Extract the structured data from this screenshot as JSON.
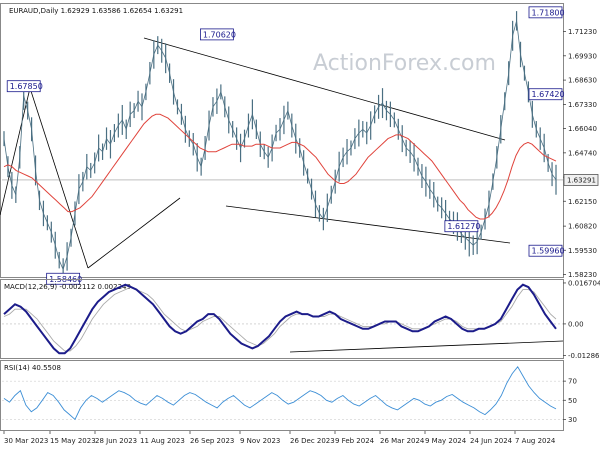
{
  "chart_data": [
    {
      "type": "line",
      "title": "EURAUD,Daily  1.62929 1.63586 1.62654 1.63291",
      "watermark": "ActionForex.com",
      "ylim": [
        1.581,
        1.727
      ],
      "yticks": [
        "1.71230",
        "1.69930",
        "1.68630",
        "1.67330",
        "1.66040",
        "1.64740",
        "1.63440",
        "1.62150",
        "1.60820",
        "1.59530",
        "1.58230"
      ],
      "ytick_values": [
        1.7123,
        1.6993,
        1.6863,
        1.6733,
        1.6604,
        1.6474,
        1.6344,
        1.6215,
        1.6082,
        1.5953,
        1.5823
      ],
      "last_price_label": "1.63291",
      "last_price": 1.63291,
      "annotations": [
        {
          "text": "1.58460",
          "index": 15,
          "value": 1.5846
        },
        {
          "text": "1.70620",
          "index": 54,
          "value": 1.7062
        },
        {
          "text": "1.61270",
          "index": 116,
          "value": 1.6127
        },
        {
          "text": "1.67420",
          "index": 142,
          "value": 1.6742
        },
        {
          "text": "1.59960",
          "index": 200,
          "value": 1.5996
        },
        {
          "text": "1.71800",
          "index": 213,
          "value": 1.718
        },
        {
          "text": "1.67850",
          "index": 5,
          "value": 1.6785
        }
      ],
      "series": [
        {
          "values": [
            1.655,
            1.64,
            1.63,
            1.625,
            1.645,
            1.678,
            1.67,
            1.66,
            1.638,
            1.622,
            1.615,
            1.61,
            1.605,
            1.598,
            1.59,
            1.585,
            1.592,
            1.602,
            1.615,
            1.628,
            1.632,
            1.64,
            1.638,
            1.642,
            1.65,
            1.648,
            1.655,
            1.652,
            1.658,
            1.662,
            1.665,
            1.66,
            1.668,
            1.67,
            1.675,
            1.672,
            1.68,
            1.69,
            1.7,
            1.705,
            1.702,
            1.698,
            1.69,
            1.68,
            1.672,
            1.668,
            1.66,
            1.655,
            1.652,
            1.645,
            1.64,
            1.65,
            1.662,
            1.672,
            1.675,
            1.68,
            1.672,
            1.665,
            1.66,
            1.655,
            1.65,
            1.655,
            1.662,
            1.668,
            1.66,
            1.652,
            1.648,
            1.645,
            1.65,
            1.658,
            1.66,
            1.665,
            1.67,
            1.662,
            1.655,
            1.65,
            1.642,
            1.635,
            1.628,
            1.62,
            1.615,
            1.612,
            1.618,
            1.625,
            1.632,
            1.64,
            1.645,
            1.648,
            1.65,
            1.655,
            1.658,
            1.66,
            1.658,
            1.662,
            1.668,
            1.672,
            1.674,
            1.67,
            1.668,
            1.665,
            1.66,
            1.655,
            1.65,
            1.648,
            1.645,
            1.64,
            1.635,
            1.632,
            1.628,
            1.625,
            1.62,
            1.618,
            1.615,
            1.612,
            1.61,
            1.608,
            1.604,
            1.602,
            1.6,
            1.598,
            1.6,
            1.605,
            1.612,
            1.62,
            1.632,
            1.645,
            1.66,
            1.675,
            1.69,
            1.71,
            1.718,
            1.7,
            1.69,
            1.68,
            1.668,
            1.66,
            1.655,
            1.65,
            1.642,
            1.636,
            1.633
          ]
        },
        {
          "values": [
            1.64,
            1.641,
            1.64,
            1.638,
            1.637,
            1.636,
            1.635,
            1.634,
            1.632,
            1.63,
            1.628,
            1.626,
            1.624,
            1.622,
            1.62,
            1.618,
            1.616,
            1.616,
            1.617,
            1.618,
            1.62,
            1.622,
            1.624,
            1.627,
            1.63,
            1.633,
            1.636,
            1.639,
            1.642,
            1.645,
            1.648,
            1.651,
            1.654,
            1.657,
            1.66,
            1.663,
            1.665,
            1.667,
            1.668,
            1.668,
            1.667,
            1.666,
            1.664,
            1.662,
            1.66,
            1.658,
            1.656,
            1.654,
            1.652,
            1.65,
            1.649,
            1.648,
            1.648,
            1.648,
            1.649,
            1.65,
            1.651,
            1.652,
            1.652,
            1.652,
            1.651,
            1.651,
            1.651,
            1.652,
            1.652,
            1.652,
            1.651,
            1.65,
            1.65,
            1.65,
            1.651,
            1.652,
            1.653,
            1.653,
            1.652,
            1.651,
            1.649,
            1.647,
            1.645,
            1.642,
            1.639,
            1.636,
            1.634,
            1.632,
            1.631,
            1.631,
            1.632,
            1.634,
            1.636,
            1.639,
            1.642,
            1.645,
            1.647,
            1.649,
            1.651,
            1.653,
            1.655,
            1.656,
            1.657,
            1.657,
            1.656,
            1.655,
            1.653,
            1.651,
            1.649,
            1.647,
            1.645,
            1.643,
            1.64,
            1.637,
            1.634,
            1.631,
            1.628,
            1.625,
            1.622,
            1.62,
            1.617,
            1.615,
            1.613,
            1.612,
            1.612,
            1.613,
            1.615,
            1.618,
            1.622,
            1.627,
            1.633,
            1.64,
            1.646,
            1.65,
            1.652,
            1.653,
            1.652,
            1.65,
            1.648,
            1.646,
            1.645,
            1.644,
            1.643
          ]
        }
      ],
      "xlabels": [
        "30 Mar 2023",
        "15 May 2023",
        "28 Jun 2023",
        "11 Aug 2023",
        "26 Sep 2023",
        "9 Nov 2023",
        "26 Dec 2023",
        "9 Feb 2024",
        "26 Mar 2024",
        "9 May 2024",
        "24 Jun 2024",
        "7 Aug 2024"
      ]
    },
    {
      "type": "line",
      "title": "MACD(12,26,9) -0.002112 0.002249",
      "ylim": [
        -0.0135,
        0.0175
      ],
      "yticks": [
        "0.016704",
        "0.00",
        "-0.012869"
      ],
      "ytick_values": [
        0.016704,
        0.0,
        -0.012869
      ],
      "series": [
        {
          "values": [
            0.004,
            0.006,
            0.008,
            0.007,
            0.005,
            0.002,
            -0.001,
            -0.004,
            -0.007,
            -0.01,
            -0.012,
            -0.012,
            -0.01,
            -0.006,
            -0.002,
            0.002,
            0.006,
            0.009,
            0.011,
            0.013,
            0.014,
            0.015,
            0.016,
            0.015,
            0.014,
            0.012,
            0.01,
            0.008,
            0.005,
            0.002,
            -0.001,
            -0.003,
            -0.004,
            -0.003,
            -0.001,
            0.001,
            0.002,
            0.004,
            0.004,
            0.002,
            -0.001,
            -0.004,
            -0.006,
            -0.008,
            -0.009,
            -0.01,
            -0.009,
            -0.007,
            -0.005,
            -0.002,
            0.001,
            0.003,
            0.004,
            0.005,
            0.004,
            0.004,
            0.003,
            0.003,
            0.004,
            0.005,
            0.004,
            0.002,
            0.001,
            0.0,
            -0.001,
            -0.002,
            -0.002,
            -0.001,
            0.0,
            0.001,
            0.001,
            0.001,
            -0.001,
            -0.002,
            -0.003,
            -0.003,
            -0.002,
            -0.001,
            0.001,
            0.002,
            0.003,
            0.002,
            0.0,
            -0.002,
            -0.003,
            -0.003,
            -0.002,
            -0.002,
            -0.001,
            0.0,
            0.002,
            0.006,
            0.01,
            0.014,
            0.016,
            0.015,
            0.012,
            0.008,
            0.004,
            0.001,
            -0.002
          ]
        },
        {
          "values": [
            0.003,
            0.004,
            0.006,
            0.006,
            0.006,
            0.004,
            0.002,
            -0.001,
            -0.004,
            -0.007,
            -0.009,
            -0.011,
            -0.011,
            -0.009,
            -0.006,
            -0.002,
            0.002,
            0.005,
            0.008,
            0.01,
            0.012,
            0.013,
            0.014,
            0.015,
            0.014,
            0.013,
            0.012,
            0.01,
            0.007,
            0.004,
            0.002,
            0.0,
            -0.002,
            -0.003,
            -0.002,
            -0.001,
            0.001,
            0.002,
            0.003,
            0.003,
            0.001,
            -0.001,
            -0.003,
            -0.005,
            -0.007,
            -0.008,
            -0.009,
            -0.008,
            -0.006,
            -0.004,
            -0.001,
            0.001,
            0.003,
            0.004,
            0.004,
            0.004,
            0.003,
            0.003,
            0.003,
            0.004,
            0.004,
            0.003,
            0.002,
            0.001,
            0.0,
            -0.001,
            -0.001,
            -0.001,
            0.0,
            0.0,
            0.001,
            0.001,
            0.0,
            -0.001,
            -0.002,
            -0.002,
            -0.002,
            -0.001,
            0.0,
            0.001,
            0.002,
            0.002,
            0.001,
            -0.001,
            -0.002,
            -0.002,
            -0.002,
            -0.002,
            -0.001,
            0.0,
            0.001,
            0.004,
            0.007,
            0.011,
            0.014,
            0.014,
            0.013,
            0.01,
            0.007,
            0.004,
            0.002
          ]
        }
      ]
    },
    {
      "type": "line",
      "title": "RSI(14) 40.5508",
      "ylim": [
        20,
        90
      ],
      "yticks": [
        "70",
        "50",
        "30"
      ],
      "ytick_values": [
        70,
        50,
        30
      ],
      "series": [
        {
          "values": [
            52,
            48,
            55,
            60,
            45,
            38,
            42,
            50,
            58,
            55,
            48,
            40,
            35,
            30,
            42,
            50,
            55,
            52,
            48,
            52,
            56,
            60,
            58,
            55,
            50,
            47,
            45,
            50,
            55,
            52,
            48,
            45,
            50,
            55,
            58,
            56,
            52,
            48,
            45,
            42,
            48,
            52,
            55,
            50,
            45,
            42,
            46,
            50,
            54,
            58,
            55,
            50,
            46,
            48,
            52,
            56,
            60,
            58,
            55,
            50,
            48,
            52,
            55,
            50,
            46,
            44,
            48,
            52,
            55,
            50,
            45,
            42,
            40,
            44,
            48,
            52,
            50,
            46,
            44,
            48,
            50,
            54,
            56,
            52,
            48,
            45,
            42,
            38,
            35,
            40,
            46,
            55,
            68,
            78,
            85,
            75,
            65,
            58,
            52,
            48,
            44,
            41
          ]
        }
      ]
    }
  ]
}
